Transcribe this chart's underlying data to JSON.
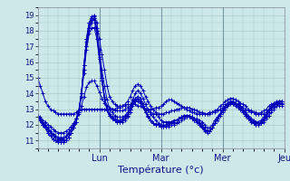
{
  "title": "",
  "xlabel": "Température (°c)",
  "ylabel": "",
  "xlim": [
    0,
    96
  ],
  "ylim": [
    10.5,
    19.5
  ],
  "yticks": [
    11,
    12,
    13,
    14,
    15,
    16,
    17,
    18,
    19
  ],
  "day_labels": [
    "Lun",
    "Mar",
    "Mer",
    "Jeu"
  ],
  "day_positions": [
    24,
    48,
    72,
    96
  ],
  "background_color": "#cce8e8",
  "grid_color": "#aacaca",
  "line_color": "#0000bb",
  "marker": "+",
  "series": [
    [
      15.0,
      14.5,
      14.0,
      13.5,
      13.2,
      13.0,
      12.9,
      12.8,
      12.7,
      12.7,
      12.7,
      12.7,
      12.7,
      12.7,
      12.7,
      12.8,
      12.9,
      13.0,
      13.0,
      13.0,
      13.0,
      13.0,
      13.0,
      13.0,
      13.0,
      13.0,
      13.0,
      13.0,
      13.0,
      13.0,
      13.0,
      13.1,
      13.1,
      13.2,
      13.2,
      13.3,
      13.3,
      13.3,
      13.3,
      13.2,
      13.2,
      13.1,
      13.0,
      13.0,
      13.0,
      13.0,
      13.1,
      13.1,
      13.2,
      13.3,
      13.5,
      13.6,
      13.6,
      13.5,
      13.4,
      13.3,
      13.2,
      13.1,
      13.0,
      12.9,
      12.8,
      12.8,
      12.7,
      12.7,
      12.7,
      12.7,
      12.7,
      12.8,
      12.8,
      12.8,
      12.9,
      13.0,
      13.1,
      13.2,
      13.3,
      13.4,
      13.4,
      13.4,
      13.3,
      13.2,
      13.1,
      13.0,
      12.9,
      12.8,
      12.8,
      12.7,
      12.7,
      12.7,
      12.7,
      12.8,
      13.0,
      13.2,
      13.3,
      13.4,
      13.4,
      13.3
    ],
    [
      12.5,
      12.3,
      12.0,
      11.8,
      11.5,
      11.3,
      11.1,
      11.0,
      11.0,
      11.0,
      11.0,
      11.0,
      11.2,
      11.5,
      11.8,
      12.2,
      12.8,
      14.0,
      15.5,
      17.0,
      18.2,
      18.8,
      19.0,
      18.5,
      17.5,
      16.5,
      15.5,
      14.5,
      13.8,
      13.5,
      13.3,
      13.2,
      13.2,
      13.2,
      13.3,
      13.5,
      13.8,
      14.2,
      14.5,
      14.6,
      14.5,
      14.2,
      13.8,
      13.5,
      13.2,
      13.0,
      12.8,
      12.5,
      12.3,
      12.2,
      12.2,
      12.2,
      12.2,
      12.3,
      12.3,
      12.4,
      12.4,
      12.5,
      12.5,
      12.5,
      12.5,
      12.4,
      12.4,
      12.3,
      12.2,
      12.0,
      11.8,
      11.8,
      12.0,
      12.3,
      12.5,
      12.7,
      12.9,
      13.1,
      13.3,
      13.4,
      13.4,
      13.4,
      13.3,
      13.2,
      13.0,
      12.8,
      12.6,
      12.4,
      12.3,
      12.2,
      12.1,
      12.1,
      12.2,
      12.4,
      12.6,
      12.8,
      13.0,
      13.2,
      13.3,
      13.3
    ],
    [
      12.5,
      12.3,
      12.0,
      11.8,
      11.5,
      11.3,
      11.1,
      11.0,
      10.9,
      10.9,
      10.9,
      11.0,
      11.2,
      11.5,
      11.8,
      12.2,
      12.8,
      14.0,
      15.5,
      17.0,
      18.0,
      18.5,
      18.8,
      18.2,
      16.8,
      15.5,
      14.5,
      13.6,
      13.0,
      12.8,
      12.6,
      12.5,
      12.5,
      12.5,
      12.6,
      12.8,
      13.2,
      13.6,
      14.0,
      14.2,
      14.0,
      13.7,
      13.3,
      13.0,
      12.7,
      12.5,
      12.3,
      12.1,
      12.0,
      11.9,
      11.9,
      11.9,
      12.0,
      12.0,
      12.1,
      12.2,
      12.3,
      12.4,
      12.5,
      12.5,
      12.5,
      12.4,
      12.3,
      12.1,
      12.0,
      11.8,
      11.6,
      11.6,
      11.8,
      12.1,
      12.3,
      12.6,
      12.8,
      13.0,
      13.2,
      13.3,
      13.3,
      13.2,
      13.1,
      13.0,
      12.8,
      12.6,
      12.4,
      12.2,
      12.1,
      12.0,
      12.0,
      12.1,
      12.3,
      12.5,
      12.8,
      13.0,
      13.1,
      13.2,
      13.2,
      13.2
    ],
    [
      12.5,
      12.3,
      12.0,
      11.8,
      11.5,
      11.3,
      11.1,
      11.0,
      10.9,
      10.9,
      10.9,
      11.0,
      11.2,
      11.5,
      11.8,
      12.2,
      12.8,
      14.0,
      15.8,
      17.5,
      18.5,
      18.8,
      18.8,
      18.0,
      16.5,
      15.0,
      13.8,
      13.0,
      12.7,
      12.5,
      12.3,
      12.2,
      12.2,
      12.2,
      12.3,
      12.5,
      12.8,
      13.2,
      13.5,
      13.6,
      13.5,
      13.2,
      12.8,
      12.5,
      12.3,
      12.1,
      12.0,
      12.0,
      12.0,
      12.0,
      12.0,
      12.1,
      12.1,
      12.2,
      12.3,
      12.4,
      12.5,
      12.5,
      12.5,
      12.5,
      12.4,
      12.3,
      12.2,
      12.0,
      11.8,
      11.6,
      11.5,
      11.6,
      11.8,
      12.1,
      12.4,
      12.7,
      12.9,
      13.1,
      13.3,
      13.4,
      13.4,
      13.3,
      13.2,
      13.0,
      12.8,
      12.6,
      12.4,
      12.2,
      12.1,
      12.0,
      12.0,
      12.1,
      12.3,
      12.5,
      12.8,
      13.0,
      13.2,
      13.3,
      13.4,
      13.4
    ],
    [
      12.6,
      12.4,
      12.1,
      11.9,
      11.7,
      11.5,
      11.3,
      11.2,
      11.1,
      11.1,
      11.1,
      11.2,
      11.4,
      11.7,
      12.0,
      12.4,
      12.9,
      14.0,
      15.8,
      17.5,
      18.5,
      18.9,
      18.9,
      18.0,
      16.5,
      15.0,
      13.8,
      13.0,
      12.6,
      12.4,
      12.3,
      12.2,
      12.2,
      12.3,
      12.4,
      12.6,
      13.0,
      13.4,
      13.7,
      13.8,
      13.7,
      13.3,
      12.9,
      12.6,
      12.3,
      12.1,
      12.0,
      12.0,
      11.9,
      11.9,
      12.0,
      12.1,
      12.1,
      12.2,
      12.3,
      12.4,
      12.5,
      12.6,
      12.6,
      12.6,
      12.5,
      12.4,
      12.3,
      12.1,
      11.9,
      11.7,
      11.6,
      11.6,
      11.8,
      12.1,
      12.4,
      12.7,
      13.0,
      13.2,
      13.4,
      13.5,
      13.5,
      13.4,
      13.3,
      13.1,
      12.9,
      12.7,
      12.5,
      12.3,
      12.2,
      12.1,
      12.1,
      12.2,
      12.4,
      12.6,
      12.9,
      13.1,
      13.3,
      13.4,
      13.5,
      13.5
    ],
    [
      12.6,
      12.4,
      12.1,
      11.9,
      11.7,
      11.5,
      11.3,
      11.2,
      11.1,
      11.1,
      11.1,
      11.2,
      11.4,
      11.7,
      12.0,
      12.4,
      12.9,
      14.0,
      15.8,
      17.3,
      18.2,
      18.7,
      18.7,
      17.8,
      16.3,
      14.8,
      13.7,
      12.9,
      12.6,
      12.4,
      12.3,
      12.2,
      12.2,
      12.3,
      12.4,
      12.6,
      13.0,
      13.4,
      13.7,
      13.8,
      13.7,
      13.3,
      12.9,
      12.6,
      12.3,
      12.1,
      12.0,
      12.0,
      11.9,
      11.9,
      12.0,
      12.0,
      12.1,
      12.2,
      12.3,
      12.4,
      12.5,
      12.6,
      12.6,
      12.6,
      12.5,
      12.4,
      12.3,
      12.1,
      11.9,
      11.7,
      11.6,
      11.6,
      11.8,
      12.1,
      12.4,
      12.7,
      13.0,
      13.2,
      13.4,
      13.5,
      13.5,
      13.4,
      13.3,
      13.1,
      12.9,
      12.7,
      12.5,
      12.3,
      12.2,
      12.1,
      12.1,
      12.2,
      12.4,
      12.6,
      12.9,
      13.1,
      13.3,
      13.4,
      13.5,
      13.5
    ],
    [
      12.6,
      12.4,
      12.2,
      12.0,
      11.8,
      11.6,
      11.4,
      11.3,
      11.2,
      11.2,
      11.2,
      11.3,
      11.5,
      11.7,
      12.0,
      12.4,
      12.9,
      13.8,
      15.3,
      16.8,
      17.8,
      18.2,
      18.2,
      17.5,
      16.2,
      14.8,
      13.7,
      13.0,
      12.7,
      12.5,
      12.4,
      12.3,
      12.3,
      12.4,
      12.5,
      12.7,
      13.0,
      13.4,
      13.6,
      13.7,
      13.5,
      13.2,
      12.8,
      12.5,
      12.3,
      12.1,
      12.0,
      12.0,
      11.9,
      11.9,
      12.0,
      12.0,
      12.1,
      12.2,
      12.3,
      12.4,
      12.5,
      12.5,
      12.5,
      12.5,
      12.4,
      12.3,
      12.2,
      12.0,
      11.9,
      11.7,
      11.6,
      11.6,
      11.8,
      12.1,
      12.4,
      12.7,
      12.9,
      13.1,
      13.3,
      13.4,
      13.4,
      13.3,
      13.2,
      13.0,
      12.8,
      12.6,
      12.4,
      12.3,
      12.2,
      12.2,
      12.2,
      12.3,
      12.5,
      12.7,
      13.0,
      13.2,
      13.3,
      13.4,
      13.5,
      13.5
    ],
    [
      12.6,
      12.5,
      12.3,
      12.2,
      12.0,
      11.9,
      11.7,
      11.6,
      11.5,
      11.5,
      11.5,
      11.6,
      11.7,
      11.9,
      12.1,
      12.4,
      12.7,
      13.2,
      13.8,
      14.4,
      14.7,
      14.8,
      14.8,
      14.5,
      14.1,
      13.7,
      13.4,
      13.2,
      13.1,
      13.0,
      12.9,
      12.9,
      12.9,
      12.9,
      13.0,
      13.1,
      13.2,
      13.4,
      13.5,
      13.5,
      13.4,
      13.2,
      13.0,
      12.9,
      12.8,
      12.7,
      12.7,
      12.7,
      12.7,
      12.7,
      12.8,
      12.8,
      12.9,
      12.9,
      13.0,
      13.0,
      13.1,
      13.1,
      13.1,
      13.1,
      13.0,
      13.0,
      12.9,
      12.8,
      12.8,
      12.7,
      12.7,
      12.7,
      12.8,
      12.9,
      13.0,
      13.2,
      13.3,
      13.5,
      13.6,
      13.7,
      13.7,
      13.6,
      13.5,
      13.4,
      13.3,
      13.2,
      13.0,
      12.9,
      12.8,
      12.8,
      12.7,
      12.8,
      12.9,
      13.0,
      13.2,
      13.3,
      13.4,
      13.5,
      13.5,
      13.5
    ]
  ]
}
